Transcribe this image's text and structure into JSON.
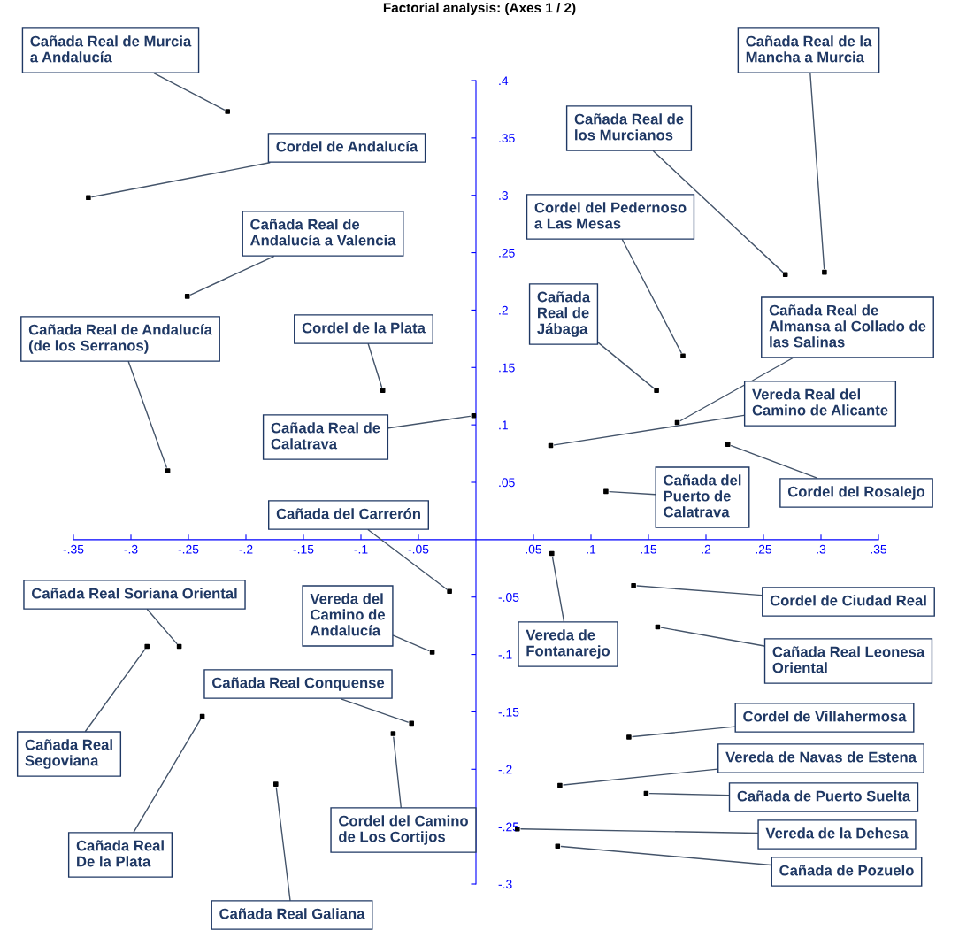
{
  "chart_data": {
    "type": "scatter",
    "title": "Factorial analysis: (Axes 1 / 2)",
    "xlim": [
      -0.35,
      0.35
    ],
    "ylim": [
      -0.3,
      0.4
    ],
    "xticks": [
      {
        "value": -0.35,
        "label": "-.35"
      },
      {
        "value": -0.3,
        "label": "-.3"
      },
      {
        "value": -0.25,
        "label": "-.25"
      },
      {
        "value": -0.2,
        "label": "-.2"
      },
      {
        "value": -0.15,
        "label": "-.15"
      },
      {
        "value": -0.1,
        "label": "-.1"
      },
      {
        "value": -0.05,
        "label": "-.05"
      },
      {
        "value": 0.05,
        "label": ".05"
      },
      {
        "value": 0.1,
        "label": ".1"
      },
      {
        "value": 0.15,
        "label": ".15"
      },
      {
        "value": 0.2,
        "label": ".2"
      },
      {
        "value": 0.25,
        "label": ".25"
      },
      {
        "value": 0.3,
        "label": ".3"
      },
      {
        "value": 0.35,
        "label": ".35"
      }
    ],
    "yticks": [
      {
        "value": -0.3,
        "label": "-.3"
      },
      {
        "value": -0.25,
        "label": "-.25"
      },
      {
        "value": -0.2,
        "label": "-.2"
      },
      {
        "value": -0.15,
        "label": "-.15"
      },
      {
        "value": -0.1,
        "label": "-.1"
      },
      {
        "value": -0.05,
        "label": "-.05"
      },
      {
        "value": 0.05,
        "label": ".05"
      },
      {
        "value": 0.1,
        "label": ".1"
      },
      {
        "value": 0.15,
        "label": ".15"
      },
      {
        "value": 0.2,
        "label": ".2"
      },
      {
        "value": 0.25,
        "label": ".25"
      },
      {
        "value": 0.3,
        "label": ".3"
      },
      {
        "value": 0.35,
        "label": ".35"
      },
      {
        "value": 0.4,
        "label": ".4"
      }
    ],
    "grid": false,
    "marker": "square",
    "series": [
      {
        "color": "#000000",
        "x": [
          -0.216,
          -0.337,
          -0.251,
          -0.268,
          -0.081,
          -0.002,
          -0.023,
          0.269,
          0.303,
          0.18,
          0.157,
          0.175,
          0.065,
          0.219,
          0.113,
          0.066,
          0.137,
          0.158,
          -0.258,
          -0.286,
          -0.038,
          -0.056,
          -0.072,
          -0.238,
          -0.174,
          0.133,
          0.073,
          0.148,
          0.036,
          0.071
        ],
        "values": [
          0.373,
          0.298,
          0.212,
          0.06,
          0.13,
          0.108,
          -0.045,
          0.231,
          0.233,
          0.16,
          0.13,
          0.102,
          0.082,
          0.083,
          0.042,
          -0.012,
          -0.04,
          -0.076,
          -0.093,
          -0.093,
          -0.098,
          -0.16,
          -0.169,
          -0.154,
          -0.213,
          -0.172,
          -0.214,
          -0.221,
          -0.252,
          -0.267
        ]
      }
    ],
    "annotations": [
      {
        "text": "Cañada Real de Murcia\na Andalucía",
        "x": -0.216,
        "y": 0.373
      },
      {
        "text": "Cordel de Andalucía",
        "x": -0.337,
        "y": 0.298
      },
      {
        "text": "Cañada Real de\nAndalucía a Valencia",
        "x": -0.251,
        "y": 0.212
      },
      {
        "text": "Cañada Real de Andalucía\n(de los Serranos)",
        "x": -0.268,
        "y": 0.06
      },
      {
        "text": "Cordel de la Plata",
        "x": -0.081,
        "y": 0.13
      },
      {
        "text": "Cañada Real de\nCalatrava",
        "x": -0.002,
        "y": 0.108
      },
      {
        "text": "Cañada del Carrerón",
        "x": -0.023,
        "y": -0.045
      },
      {
        "text": "Cañada Real de\nlos Murcianos",
        "x": 0.269,
        "y": 0.231
      },
      {
        "text": "Cañada Real de la\nMancha a Murcia",
        "x": 0.303,
        "y": 0.233
      },
      {
        "text": "Cordel del Pedernoso\na Las Mesas",
        "x": 0.18,
        "y": 0.16
      },
      {
        "text": "Cañada\nReal de\nJábaga",
        "x": 0.157,
        "y": 0.13
      },
      {
        "text": "Cañada Real de\nAlmansa al Collado de\nlas Salinas",
        "x": 0.175,
        "y": 0.102
      },
      {
        "text": "Vereda Real del\nCamino de Alicante",
        "x": 0.065,
        "y": 0.082
      },
      {
        "text": "Cordel del Rosalejo",
        "x": 0.219,
        "y": 0.083
      },
      {
        "text": "Cañada del\nPuerto de\nCalatrava",
        "x": 0.113,
        "y": 0.042
      },
      {
        "text": "Vereda de\nFontanarejo",
        "x": 0.066,
        "y": -0.012
      },
      {
        "text": "Cordel de Ciudad Real",
        "x": 0.137,
        "y": -0.04
      },
      {
        "text": "Cañada Real Leonesa\nOriental",
        "x": 0.158,
        "y": -0.076
      },
      {
        "text": "Cañada Real Soriana Oriental",
        "x": -0.258,
        "y": -0.093
      },
      {
        "text": "Cañada Real\nSegoviana",
        "x": -0.286,
        "y": -0.093
      },
      {
        "text": "Vereda del\nCamino de\nAndalucía",
        "x": -0.038,
        "y": -0.098
      },
      {
        "text": "Cañada Real Conquense",
        "x": -0.056,
        "y": -0.16
      },
      {
        "text": "Cordel del Camino\nde Los Cortijos",
        "x": -0.072,
        "y": -0.169
      },
      {
        "text": "Cañada Real\nDe la Plata",
        "x": -0.238,
        "y": -0.154
      },
      {
        "text": "Cañada Real Galiana",
        "x": -0.174,
        "y": -0.213
      },
      {
        "text": "Cordel de Villahermosa",
        "x": 0.133,
        "y": -0.172
      },
      {
        "text": "Vereda de Navas de Estena",
        "x": 0.073,
        "y": -0.214
      },
      {
        "text": "Cañada de Puerto Suelta",
        "x": 0.148,
        "y": -0.221
      },
      {
        "text": "Vereda de la Dehesa",
        "x": 0.036,
        "y": -0.252
      },
      {
        "text": "Cañada de Pozuelo",
        "x": 0.071,
        "y": -0.267
      }
    ]
  }
}
